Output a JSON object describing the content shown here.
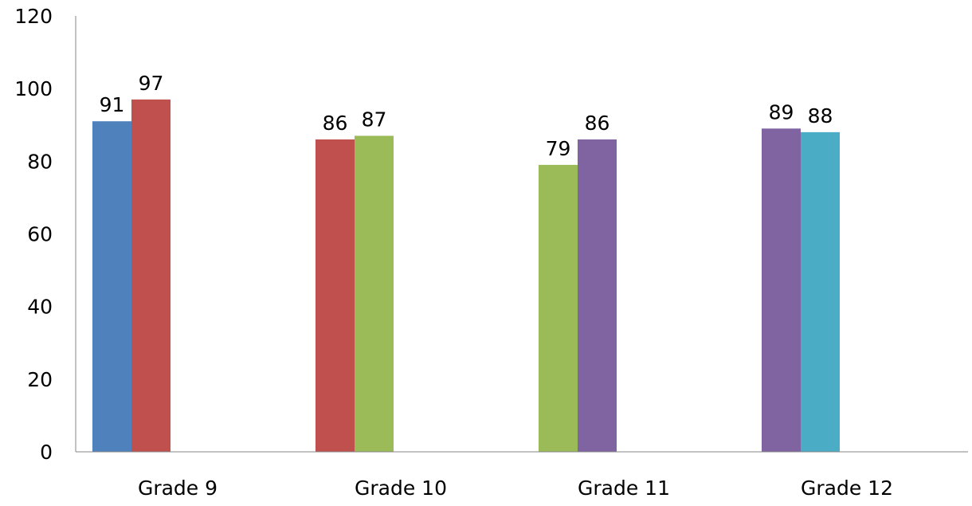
{
  "chart_data": {
    "type": "bar",
    "categories": [
      "Grade 9",
      "Grade 10",
      "Grade 11",
      "Grade 12"
    ],
    "ylim": [
      0,
      120
    ],
    "yticks": [
      0,
      20,
      40,
      60,
      80,
      100,
      120
    ],
    "ytick_labels": [
      "0",
      "20",
      "40",
      "60",
      "80",
      "100",
      "120"
    ],
    "grid": false,
    "legend": "none",
    "series": [
      {
        "color": "#4F81BD",
        "values": [
          91,
          null,
          null,
          null
        ],
        "labels": [
          "91",
          null,
          null,
          null
        ]
      },
      {
        "color": "#C0504D",
        "values": [
          97,
          86,
          null,
          null
        ],
        "labels": [
          "97",
          "86",
          null,
          null
        ]
      },
      {
        "color": "#9BBB59",
        "values": [
          null,
          87,
          79,
          null
        ],
        "labels": [
          null,
          "87",
          "79",
          null
        ]
      },
      {
        "color": "#8064A2",
        "values": [
          null,
          null,
          86,
          89
        ],
        "labels": [
          null,
          null,
          "86",
          "89"
        ]
      },
      {
        "color": "#4BACC6",
        "values": [
          null,
          null,
          null,
          88
        ],
        "labels": [
          null,
          null,
          null,
          "88"
        ]
      }
    ]
  }
}
